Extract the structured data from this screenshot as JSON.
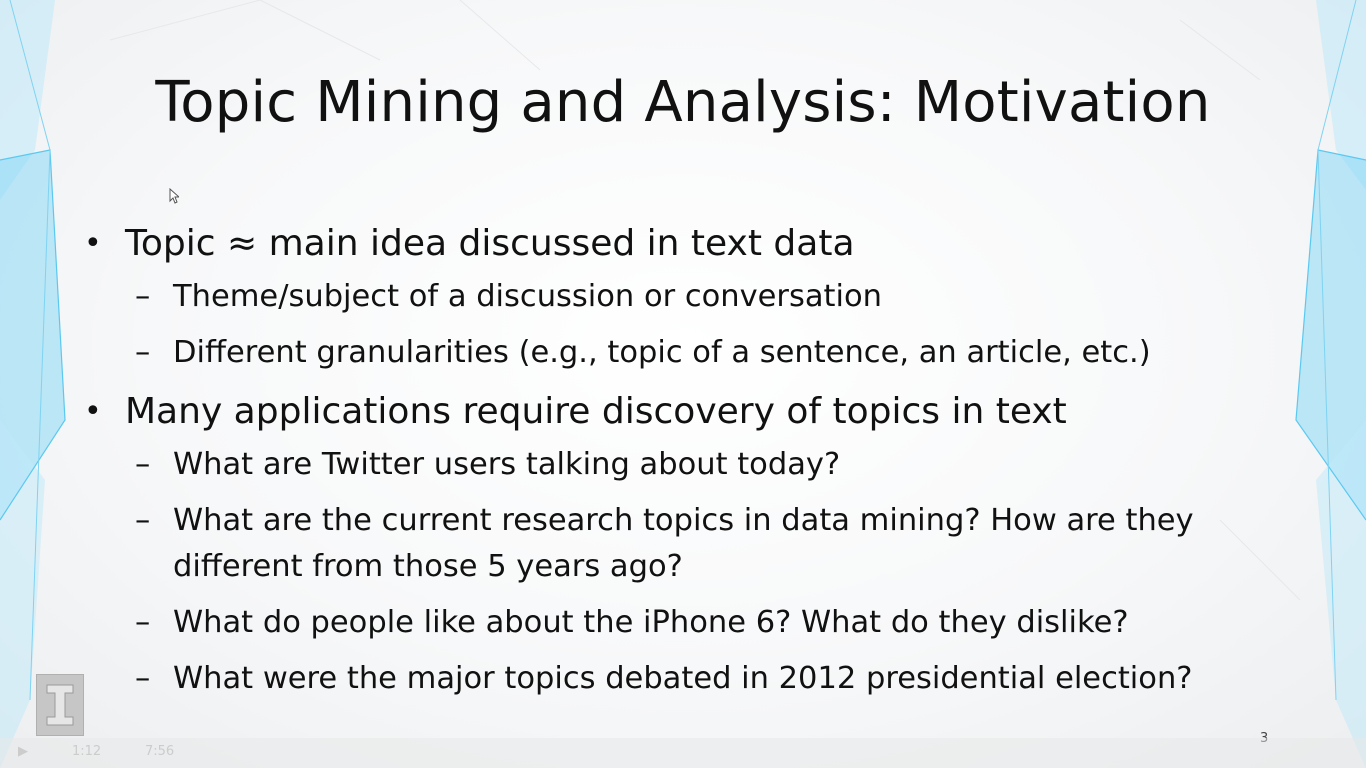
{
  "slide": {
    "title": "Topic Mining and Analysis: Motivation",
    "page_number": "3",
    "bullets": [
      {
        "text": "Topic ≈ main idea discussed in text data",
        "subs": [
          "Theme/subject of a discussion or conversation",
          "Different granularities (e.g., topic of a sentence, an article, etc.)"
        ]
      },
      {
        "text": "Many applications require discovery of topics in text",
        "subs": [
          "What are Twitter users talking about today?",
          "What are the current research topics in data mining? How are they different from those 5 years ago?",
          "What do people like about the iPhone 6? What do they dislike?",
          "What were the major topics debated in 2012 presidential election?"
        ]
      }
    ],
    "bullet_glyph": "•",
    "dash_glyph": "–"
  },
  "player": {
    "elapsed": "1:12",
    "duration": "7:56"
  },
  "colors": {
    "accent": "#5bc8f0",
    "text": "#111111",
    "logo_bg": "#c6c6c6"
  },
  "icons": [
    "university-logo-icon",
    "pointer-cursor-icon",
    "play-icon"
  ]
}
